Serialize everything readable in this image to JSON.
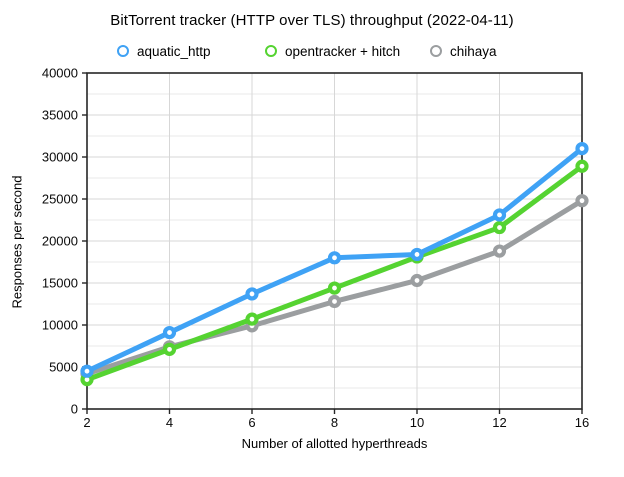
{
  "chart_data": {
    "type": "line",
    "title": "BitTorrent tracker (HTTP over TLS) throughput (2022-04-11)",
    "xlabel": "Number of allotted hyperthreads",
    "ylabel": "Responses per second",
    "categories": [
      2,
      4,
      6,
      8,
      10,
      12,
      16
    ],
    "x_tick_labels": [
      "2",
      "4",
      "6",
      "8",
      "10",
      "12",
      "16"
    ],
    "series": [
      {
        "name": "chihaya",
        "color": "#9b9ea0",
        "values": [
          4200,
          7400,
          9900,
          12800,
          15300,
          18800,
          24800
        ]
      },
      {
        "name": "opentracker + hitch",
        "color": "#55d331",
        "values": [
          3500,
          7100,
          10700,
          14400,
          18100,
          21600,
          28900
        ]
      },
      {
        "name": "aquatic_http",
        "color": "#3fa2f5",
        "values": [
          4500,
          9100,
          13700,
          18000,
          18400,
          23100,
          31000
        ]
      }
    ],
    "ylim": [
      0,
      40000
    ],
    "y_major_step": 5000,
    "y_minor_step": 2500,
    "y_tick_labels": [
      "0",
      "5000",
      "10000",
      "15000",
      "20000",
      "25000",
      "30000",
      "35000",
      "40000"
    ],
    "grid": "on",
    "legend_position": "top"
  },
  "legend": {
    "items": [
      {
        "label": "aquatic_http",
        "color": "#3fa2f5"
      },
      {
        "label": "opentracker + hitch",
        "color": "#55d331"
      },
      {
        "label": "chihaya",
        "color": "#9b9ea0"
      }
    ]
  },
  "colors": {
    "axis": "#262626",
    "grid_major": "#d7d7d7",
    "grid_minor": "#eaeaea",
    "marker_fill": "#ffffff",
    "tick_label": "#0a0a0a"
  }
}
